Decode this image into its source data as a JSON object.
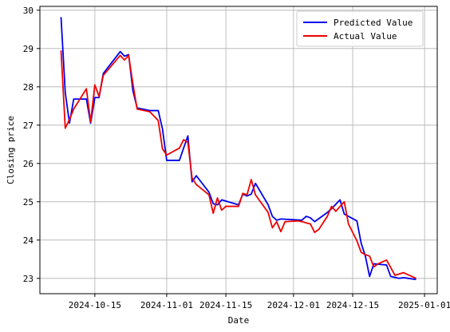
{
  "chart_data": {
    "type": "line",
    "title": "",
    "xlabel": "Date",
    "ylabel": "Closing price",
    "x_axis_type": "date",
    "xlim": [
      "2024-10-02",
      "2025-01-04"
    ],
    "ylim": [
      22.6,
      30.1
    ],
    "grid": true,
    "legend_position": "top-right",
    "x_ticks": [
      "2024-10-15",
      "2024-11-01",
      "2024-11-15",
      "2024-12-01",
      "2024-12-15",
      "2025-01-01"
    ],
    "y_ticks": [
      23,
      24,
      25,
      26,
      27,
      28,
      29,
      30
    ],
    "series": [
      {
        "name": "Predicted Value",
        "color": "#0000ee",
        "points": [
          [
            "2024-10-07",
            29.82
          ],
          [
            "2024-10-08",
            27.85
          ],
          [
            "2024-10-09",
            27.05
          ],
          [
            "2024-10-10",
            27.68
          ],
          [
            "2024-10-13",
            27.68
          ],
          [
            "2024-10-14",
            27.05
          ],
          [
            "2024-10-15",
            27.72
          ],
          [
            "2024-10-16",
            27.72
          ],
          [
            "2024-10-17",
            28.35
          ],
          [
            "2024-10-21",
            28.92
          ],
          [
            "2024-10-22",
            28.8
          ],
          [
            "2024-10-23",
            28.84
          ],
          [
            "2024-10-24",
            27.9
          ],
          [
            "2024-10-25",
            27.45
          ],
          [
            "2024-10-28",
            27.38
          ],
          [
            "2024-10-30",
            27.38
          ],
          [
            "2024-10-31",
            26.9
          ],
          [
            "2024-11-01",
            26.08
          ],
          [
            "2024-11-04",
            26.08
          ],
          [
            "2024-11-06",
            26.72
          ],
          [
            "2024-11-07",
            25.52
          ],
          [
            "2024-11-08",
            25.68
          ],
          [
            "2024-11-11",
            25.25
          ],
          [
            "2024-11-12",
            24.95
          ],
          [
            "2024-11-13",
            24.92
          ],
          [
            "2024-11-14",
            25.05
          ],
          [
            "2024-11-18",
            24.92
          ],
          [
            "2024-11-19",
            25.2
          ],
          [
            "2024-11-20",
            25.15
          ],
          [
            "2024-11-21",
            25.2
          ],
          [
            "2024-11-22",
            25.48
          ],
          [
            "2024-11-25",
            24.92
          ],
          [
            "2024-11-26",
            24.62
          ],
          [
            "2024-11-27",
            24.52
          ],
          [
            "2024-11-28",
            24.55
          ],
          [
            "2024-12-03",
            24.52
          ],
          [
            "2024-12-04",
            24.62
          ],
          [
            "2024-12-05",
            24.58
          ],
          [
            "2024-12-06",
            24.48
          ],
          [
            "2024-12-09",
            24.72
          ],
          [
            "2024-12-10",
            24.82
          ],
          [
            "2024-12-12",
            25.05
          ],
          [
            "2024-12-13",
            24.68
          ],
          [
            "2024-12-16",
            24.5
          ],
          [
            "2024-12-17",
            23.92
          ],
          [
            "2024-12-18",
            23.58
          ],
          [
            "2024-12-19",
            23.05
          ],
          [
            "2024-12-20",
            23.38
          ],
          [
            "2024-12-23",
            23.35
          ],
          [
            "2024-12-24",
            23.05
          ],
          [
            "2024-12-26",
            23.0
          ],
          [
            "2024-12-27",
            23.02
          ],
          [
            "2024-12-30",
            22.97
          ]
        ]
      },
      {
        "name": "Actual Value",
        "color": "#ee0000",
        "points": [
          [
            "2024-10-07",
            28.95
          ],
          [
            "2024-10-08",
            26.92
          ],
          [
            "2024-10-09",
            27.15
          ],
          [
            "2024-10-10",
            27.42
          ],
          [
            "2024-10-13",
            27.95
          ],
          [
            "2024-10-14",
            27.08
          ],
          [
            "2024-10-15",
            28.05
          ],
          [
            "2024-10-16",
            27.75
          ],
          [
            "2024-10-17",
            28.3
          ],
          [
            "2024-10-21",
            28.82
          ],
          [
            "2024-10-22",
            28.7
          ],
          [
            "2024-10-23",
            28.82
          ],
          [
            "2024-10-24",
            28.08
          ],
          [
            "2024-10-25",
            27.42
          ],
          [
            "2024-10-28",
            27.35
          ],
          [
            "2024-10-30",
            27.12
          ],
          [
            "2024-10-31",
            26.38
          ],
          [
            "2024-11-01",
            26.22
          ],
          [
            "2024-11-04",
            26.4
          ],
          [
            "2024-11-05",
            26.62
          ],
          [
            "2024-11-06",
            26.55
          ],
          [
            "2024-11-07",
            25.62
          ],
          [
            "2024-11-08",
            25.45
          ],
          [
            "2024-11-11",
            25.18
          ],
          [
            "2024-11-12",
            24.7
          ],
          [
            "2024-11-13",
            25.1
          ],
          [
            "2024-11-14",
            24.78
          ],
          [
            "2024-11-15",
            24.88
          ],
          [
            "2024-11-18",
            24.88
          ],
          [
            "2024-11-19",
            25.22
          ],
          [
            "2024-11-20",
            25.18
          ],
          [
            "2024-11-21",
            25.58
          ],
          [
            "2024-11-22",
            25.18
          ],
          [
            "2024-11-25",
            24.72
          ],
          [
            "2024-11-26",
            24.32
          ],
          [
            "2024-11-27",
            24.48
          ],
          [
            "2024-11-28",
            24.22
          ],
          [
            "2024-11-29",
            24.48
          ],
          [
            "2024-12-02",
            24.5
          ],
          [
            "2024-12-03",
            24.48
          ],
          [
            "2024-12-04",
            24.45
          ],
          [
            "2024-12-05",
            24.42
          ],
          [
            "2024-12-06",
            24.2
          ],
          [
            "2024-12-07",
            24.28
          ],
          [
            "2024-12-09",
            24.62
          ],
          [
            "2024-12-10",
            24.88
          ],
          [
            "2024-12-11",
            24.75
          ],
          [
            "2024-12-13",
            25.0
          ],
          [
            "2024-12-14",
            24.42
          ],
          [
            "2024-12-16",
            23.98
          ],
          [
            "2024-12-17",
            23.68
          ],
          [
            "2024-12-18",
            23.62
          ],
          [
            "2024-12-19",
            23.58
          ],
          [
            "2024-12-20",
            23.3
          ],
          [
            "2024-12-21",
            23.38
          ],
          [
            "2024-12-23",
            23.48
          ],
          [
            "2024-12-24",
            23.28
          ],
          [
            "2024-12-25",
            23.08
          ],
          [
            "2024-12-27",
            23.15
          ],
          [
            "2024-12-30",
            23.0
          ]
        ]
      }
    ]
  }
}
